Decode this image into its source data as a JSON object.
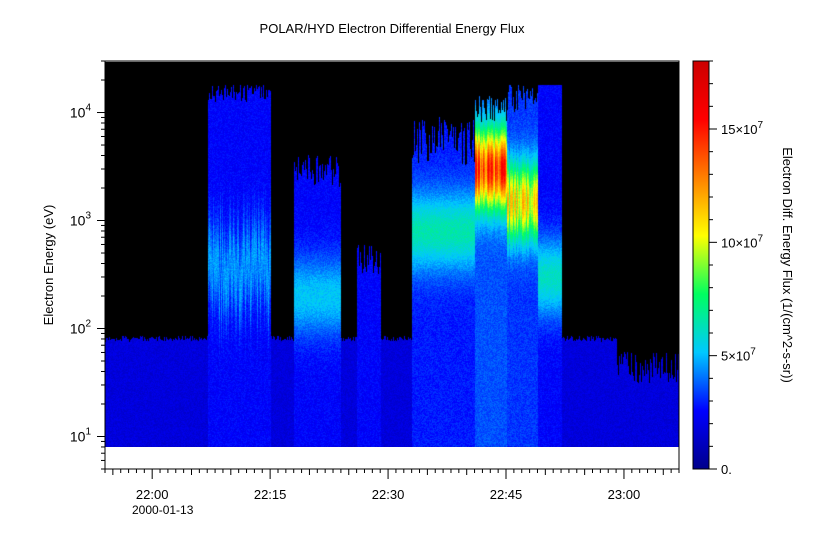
{
  "chart_data": {
    "type": "heatmap",
    "title": "POLAR/HYD  Electron Differential Energy Flux",
    "xlabel": "",
    "date_label": "2000-01-13",
    "ylabel": "Electron Energy (eV)",
    "colorbar_label": "Electron Diff. Energy Flux (1/(cm^2-s-sr))",
    "x_range": [
      "21:54",
      "23:07"
    ],
    "x_ticks": [
      "22:00",
      "22:15",
      "22:30",
      "22:45",
      "23:00"
    ],
    "y_scale": "log",
    "y_range": [
      5,
      30000
    ],
    "y_ticks": [
      {
        "base": "10",
        "exp": "1"
      },
      {
        "base": "10",
        "exp": "2"
      },
      {
        "base": "10",
        "exp": "3"
      },
      {
        "base": "10",
        "exp": "4"
      }
    ],
    "colorbar_range": [
      0,
      180000000
    ],
    "colorbar_ticks": [
      {
        "value": 0,
        "text": "0.",
        "exp": ""
      },
      {
        "value": 50000000,
        "text": "5×10",
        "exp": "7"
      },
      {
        "value": 100000000,
        "text": "10×10",
        "exp": "7"
      },
      {
        "value": 150000000,
        "text": "15×10",
        "exp": "7"
      }
    ],
    "colormap": [
      "#00008b",
      "#0000ff",
      "#00c8ff",
      "#00ff60",
      "#ffff00",
      "#ff8000",
      "#ff0000",
      "#cc0000"
    ],
    "background_fill": "#000000"
  }
}
